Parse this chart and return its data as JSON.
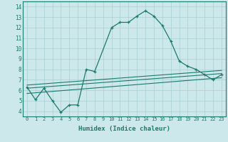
{
  "xlabel": "Humidex (Indice chaleur)",
  "xlim": [
    -0.5,
    23.5
  ],
  "ylim": [
    3.5,
    14.5
  ],
  "xticks": [
    0,
    1,
    2,
    3,
    4,
    5,
    6,
    7,
    8,
    9,
    10,
    11,
    12,
    13,
    14,
    15,
    16,
    17,
    18,
    19,
    20,
    21,
    22,
    23
  ],
  "yticks": [
    4,
    5,
    6,
    7,
    8,
    9,
    10,
    11,
    12,
    13,
    14
  ],
  "bg_color": "#cde8eb",
  "grid_color": "#a8cfd3",
  "line_color": "#1a7a6e",
  "line1_x": [
    0,
    1,
    2,
    3,
    4,
    5,
    6,
    7,
    8,
    10,
    11,
    12,
    13,
    14,
    15,
    16,
    17,
    18,
    19,
    20,
    21,
    22,
    23
  ],
  "line1_y": [
    6.3,
    5.1,
    6.2,
    5.0,
    3.9,
    4.6,
    4.6,
    8.0,
    7.8,
    12.0,
    12.5,
    12.5,
    13.1,
    13.6,
    13.1,
    12.2,
    10.7,
    8.8,
    8.3,
    8.0,
    7.5,
    7.0,
    7.5
  ],
  "line2_x": [
    0,
    23
  ],
  "line2_y": [
    6.5,
    7.9
  ],
  "line3_x": [
    0,
    23
  ],
  "line3_y": [
    6.2,
    7.6
  ],
  "line4_x": [
    0,
    23
  ],
  "line4_y": [
    5.7,
    7.2
  ]
}
